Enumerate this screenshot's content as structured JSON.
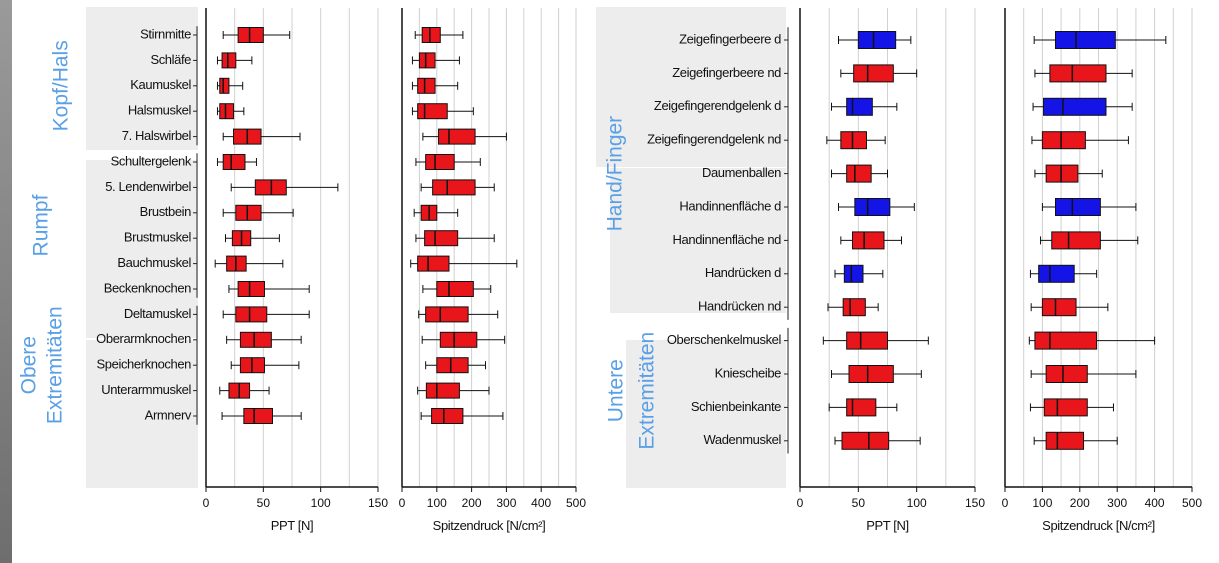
{
  "colors": {
    "red": "#e8151b",
    "blue": "#1414e6",
    "group_label": "#5aa0e6",
    "group_bg": "#ededed",
    "grid": "#d0d0d0"
  },
  "chart_data": [
    {
      "type": "boxplot",
      "orientation": "horizontal",
      "groups": [
        {
          "label_lines": [
            "Kopf/Hals"
          ],
          "start": 0,
          "end": 4
        },
        {
          "label_lines": [
            "Rumpf"
          ],
          "start": 5,
          "end": 10
        },
        {
          "label_lines": [
            "Obere",
            "Extremitäten"
          ],
          "start": 11,
          "end": 15
        }
      ],
      "categories": [
        "Stirnmitte",
        "Schläfe",
        "Kaumuskel",
        "Halsmuskel",
        "7. Halswirbel",
        "Schultergelenk",
        "5. Lendenwirbel",
        "Brustbein",
        "Brustmuskel",
        "Bauchmuskel",
        "Beckenknochen",
        "Deltamuskel",
        "Oberarmknochen",
        "Speicherknochen",
        "Unterarmmuskel",
        "Armnerv"
      ],
      "panels": [
        {
          "xlabel": "PPT [N]",
          "xlim": [
            0,
            150
          ],
          "xticks": [
            0,
            50,
            100,
            150
          ],
          "boxes": [
            [
              15,
              28,
              38,
              50,
              73
            ],
            [
              10,
              14,
              19,
              26,
              40
            ],
            [
              10,
              12,
              15,
              20,
              32
            ],
            [
              10,
              12,
              17,
              24,
              33
            ],
            [
              15,
              24,
              36,
              48,
              82
            ],
            [
              10,
              15,
              22,
              34,
              44
            ],
            [
              22,
              43,
              57,
              70,
              115
            ],
            [
              15,
              26,
              36,
              48,
              76
            ],
            [
              17,
              23,
              31,
              39,
              64
            ],
            [
              8,
              18,
              26,
              35,
              67
            ],
            [
              20,
              28,
              38,
              51,
              90
            ],
            [
              15,
              26,
              38,
              53,
              90
            ],
            [
              18,
              30,
              42,
              57,
              83
            ],
            [
              22,
              30,
              40,
              51,
              81
            ],
            [
              12,
              20,
              29,
              38,
              55
            ],
            [
              14,
              33,
              42,
              58,
              83
            ]
          ]
        },
        {
          "xlabel": "Spitzendruck [N/cm²]",
          "xlim": [
            0,
            500
          ],
          "xticks": [
            0,
            100,
            200,
            300,
            400,
            500
          ],
          "boxes": [
            [
              38,
              58,
              80,
              110,
              175
            ],
            [
              30,
              50,
              68,
              95,
              165
            ],
            [
              30,
              45,
              65,
              95,
              160
            ],
            [
              30,
              45,
              65,
              130,
              205
            ],
            [
              60,
              105,
              135,
              210,
              300
            ],
            [
              40,
              68,
              95,
              150,
              225
            ],
            [
              55,
              88,
              130,
              210,
              265
            ],
            [
              35,
              55,
              78,
              100,
              160
            ],
            [
              40,
              65,
              95,
              160,
              265
            ],
            [
              25,
              45,
              75,
              135,
              330
            ],
            [
              60,
              100,
              135,
              205,
              255
            ],
            [
              48,
              68,
              110,
              190,
              275
            ],
            [
              58,
              110,
              150,
              215,
              295
            ],
            [
              68,
              100,
              140,
              190,
              240
            ],
            [
              45,
              70,
              100,
              165,
              250
            ],
            [
              55,
              85,
              120,
              175,
              290
            ]
          ]
        }
      ]
    },
    {
      "type": "boxplot",
      "orientation": "horizontal",
      "groups": [
        {
          "label_lines": [
            "Hand/Finger"
          ],
          "start": 0,
          "end": 8
        },
        {
          "label_lines": [
            "Untere",
            "Extremitäten"
          ],
          "start": 9,
          "end": 12
        }
      ],
      "categories": [
        "Zeigefingerbeere d",
        "Zeigefingerbeere nd",
        "Zeigefingerendgelenk d",
        "Zeigefingerendgelenk nd",
        "Daumenballen",
        "Handinnenfläche d",
        "Handinnenfläche nd",
        "Handrücken d",
        "Handrücken nd",
        "Oberschenkelmuskel",
        "Kniescheibe",
        "Schienbeinkante",
        "Wadenmuskel"
      ],
      "box_colors": [
        "blue",
        "red",
        "blue",
        "red",
        "red",
        "blue",
        "red",
        "blue",
        "red",
        "red",
        "red",
        "red",
        "red"
      ],
      "panels": [
        {
          "xlabel": "PPT [N]",
          "xlim": [
            0,
            150
          ],
          "xticks": [
            0,
            50,
            100,
            150
          ],
          "boxes": [
            [
              33,
              50,
              63,
              82,
              95
            ],
            [
              35,
              46,
              58,
              80,
              100
            ],
            [
              27,
              40,
              45,
              62,
              83
            ],
            [
              23,
              35,
              45,
              57,
              73
            ],
            [
              27,
              40,
              47,
              61,
              75
            ],
            [
              33,
              47,
              58,
              77,
              98
            ],
            [
              35,
              45,
              55,
              72,
              87
            ],
            [
              30,
              38,
              44,
              54,
              71
            ],
            [
              24,
              37,
              43,
              56,
              67
            ],
            [
              20,
              40,
              52,
              75,
              110
            ],
            [
              27,
              42,
              58,
              80,
              104
            ],
            [
              25,
              40,
              45,
              65,
              83
            ],
            [
              30,
              36,
              59,
              76,
              103
            ]
          ]
        },
        {
          "xlabel": "Spitzendruck [N/cm²]",
          "xlim": [
            0,
            500
          ],
          "xticks": [
            0,
            100,
            200,
            300,
            400,
            500
          ],
          "boxes": [
            [
              78,
              135,
              190,
              295,
              430
            ],
            [
              80,
              120,
              180,
              270,
              340
            ],
            [
              75,
              103,
              155,
              270,
              340
            ],
            [
              72,
              100,
              150,
              215,
              330
            ],
            [
              80,
              110,
              150,
              195,
              260
            ],
            [
              100,
              135,
              180,
              255,
              350
            ],
            [
              95,
              125,
              170,
              255,
              355
            ],
            [
              68,
              90,
              120,
              185,
              245
            ],
            [
              70,
              100,
              135,
              190,
              275
            ],
            [
              65,
              80,
              120,
              245,
              400
            ],
            [
              70,
              110,
              155,
              220,
              350
            ],
            [
              68,
              105,
              140,
              220,
              290
            ],
            [
              78,
              110,
              140,
              210,
              300
            ]
          ]
        }
      ]
    }
  ]
}
